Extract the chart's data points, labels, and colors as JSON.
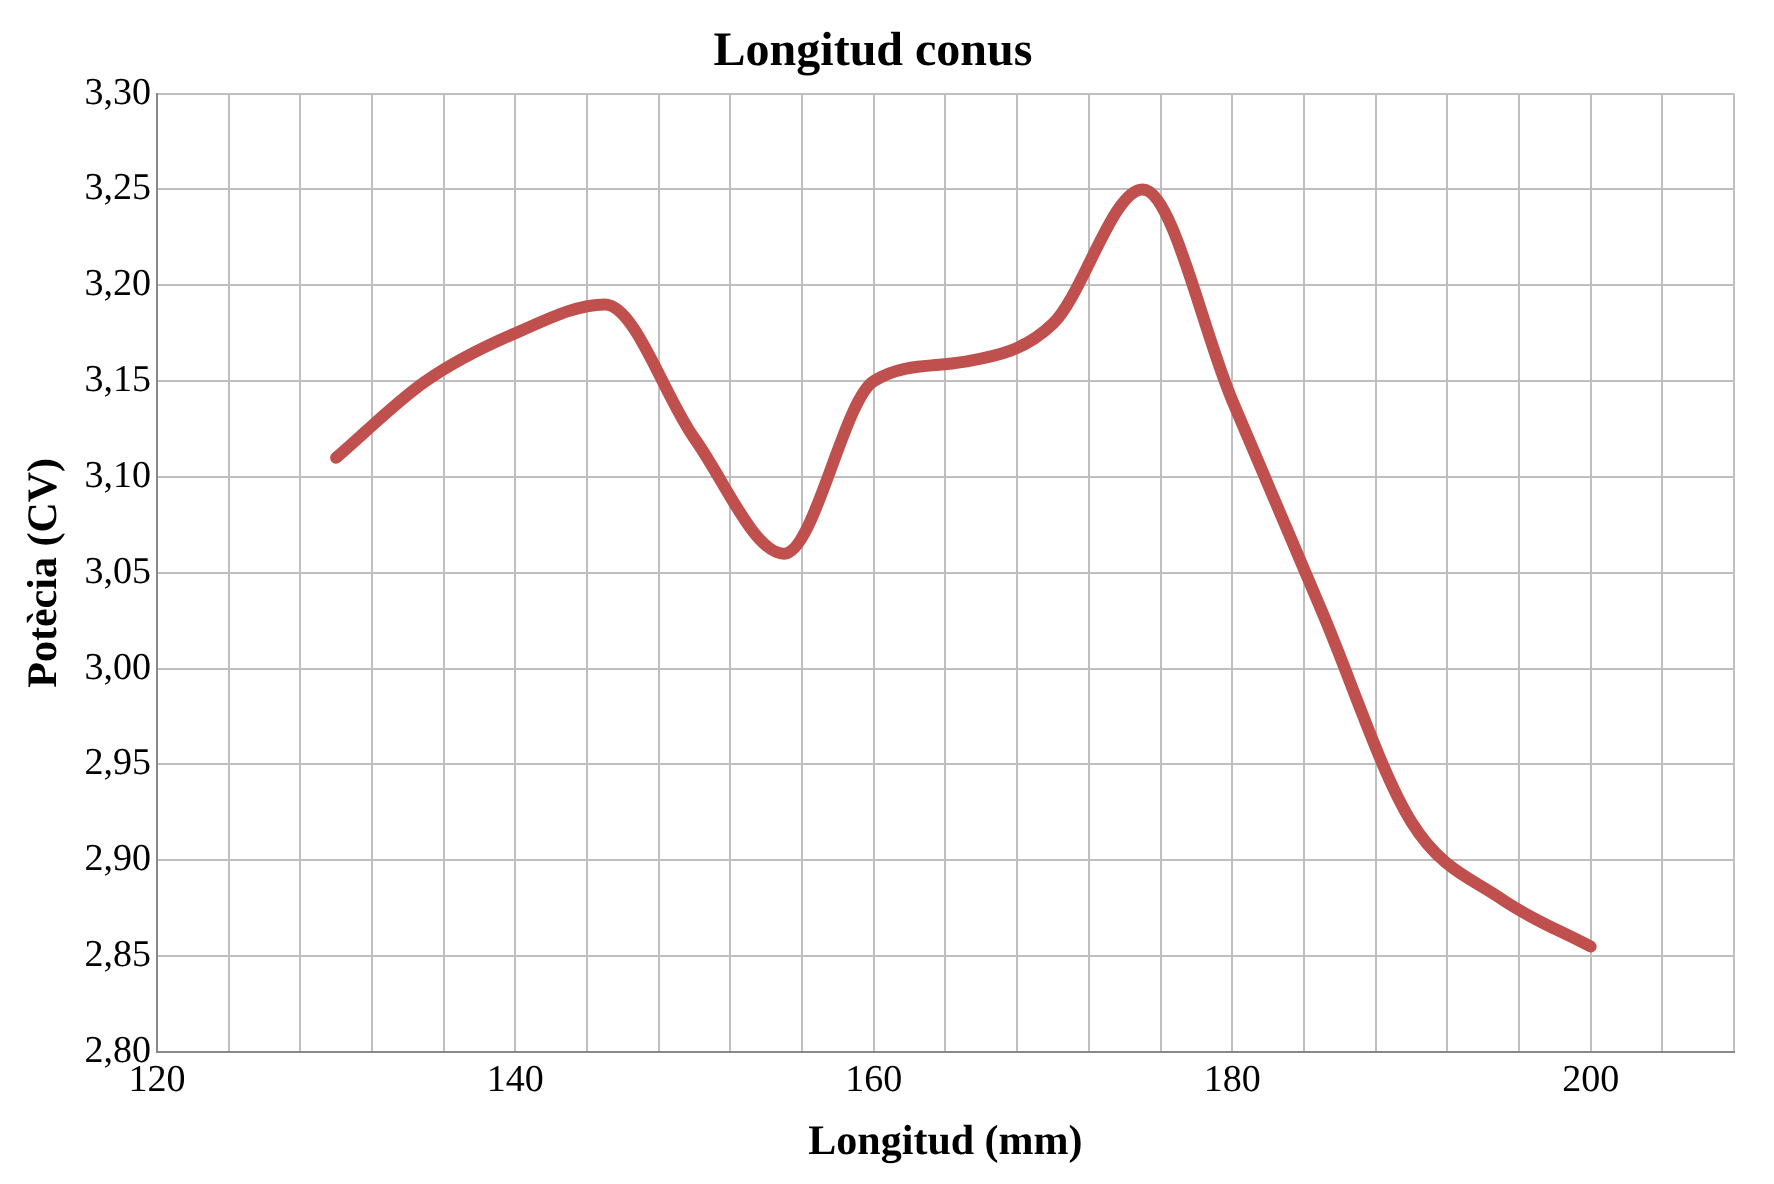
{
  "chart_data": {
    "type": "line",
    "title": "Longitud conus",
    "xlabel": "Longitud (mm)",
    "ylabel": "Potècia (CV)",
    "x": [
      130,
      135,
      140,
      145,
      150,
      155,
      160,
      165,
      170,
      175,
      180,
      185,
      190,
      195,
      200
    ],
    "series": [
      {
        "color": "#c0504d",
        "values": [
          3.11,
          3.15,
          3.175,
          3.19,
          3.12,
          3.06,
          3.15,
          3.16,
          3.18,
          3.25,
          3.14,
          3.03,
          2.92,
          2.88,
          2.855
        ]
      }
    ],
    "xlim": [
      120,
      208
    ],
    "xticks": [
      120,
      {
        "value": 124,
        "label": null
      },
      {
        "value": 128,
        "label": null
      },
      {
        "value": 132,
        "label": null
      },
      {
        "value": 136,
        "label": null
      },
      140,
      {
        "value": 144,
        "label": null
      },
      {
        "value": 148,
        "label": null
      },
      {
        "value": 152,
        "label": null
      },
      {
        "value": 156,
        "label": null
      },
      160,
      {
        "value": 164,
        "label": null
      },
      {
        "value": 168,
        "label": null
      },
      {
        "value": 172,
        "label": null
      },
      {
        "value": 176,
        "label": null
      },
      180,
      {
        "value": 184,
        "label": null
      },
      {
        "value": 188,
        "label": null
      },
      {
        "value": 192,
        "label": null
      },
      {
        "value": 196,
        "label": null
      },
      200,
      {
        "value": 204,
        "label": null
      },
      {
        "value": 208,
        "label": null
      }
    ],
    "ylim": [
      2.8,
      3.3
    ],
    "yticks": [
      {
        "value": 2.8,
        "label": "2,80"
      },
      {
        "value": 2.85,
        "label": "2,85"
      },
      {
        "value": 2.9,
        "label": "2,90"
      },
      {
        "value": 2.95,
        "label": "2,95"
      },
      {
        "value": 3.0,
        "label": "3,00"
      },
      {
        "value": 3.05,
        "label": "3,05"
      },
      {
        "value": 3.1,
        "label": "3,10"
      },
      {
        "value": 3.15,
        "label": "3,15"
      },
      {
        "value": 3.2,
        "label": "3,20"
      },
      {
        "value": 3.25,
        "label": "3,25"
      },
      {
        "value": 3.3,
        "label": "3,30"
      }
    ],
    "grid": true,
    "legend": false,
    "marker": "none",
    "line_style": "solid"
  }
}
